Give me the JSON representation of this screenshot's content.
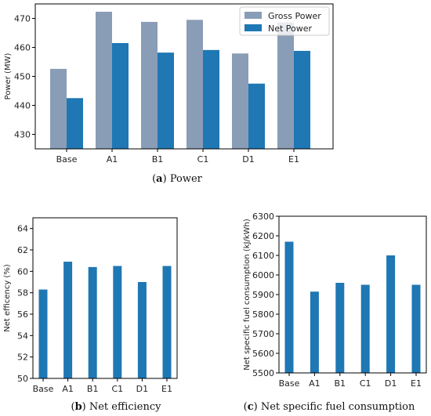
{
  "colors": {
    "gross": "#8a9db7",
    "net": "#1f77b4",
    "axis": "#000000"
  },
  "chart_data": [
    {
      "type": "bar",
      "caption_tag": "a",
      "caption_text": "Power",
      "categories": [
        "Base",
        "A1",
        "B1",
        "C1",
        "D1",
        "E1"
      ],
      "ylabel": "Power (MW)",
      "xlabel": "",
      "ylim": [
        425,
        475
      ],
      "yticks": [
        430,
        440,
        450,
        460,
        470
      ],
      "legend_position": "top-right",
      "series": [
        {
          "name": "Gross Power",
          "color": "#8a9db7",
          "values": [
            452.6,
            472.3,
            468.8,
            469.5,
            457.9,
            468.6
          ]
        },
        {
          "name": "Net Power",
          "color": "#1f77b4",
          "values": [
            442.5,
            461.5,
            458.2,
            459.1,
            447.5,
            458.8
          ]
        }
      ]
    },
    {
      "type": "bar",
      "caption_tag": "b",
      "caption_text": "Net efficiency",
      "categories": [
        "Base",
        "A1",
        "B1",
        "C1",
        "D1",
        "E1"
      ],
      "ylabel": "Net efficency (%)",
      "xlabel": "",
      "ylim": [
        50,
        65
      ],
      "yticks": [
        50,
        52,
        54,
        56,
        58,
        60,
        62,
        64
      ],
      "series": [
        {
          "color": "#1f77b4",
          "values": [
            58.3,
            60.9,
            60.4,
            60.5,
            59.0,
            60.5
          ]
        }
      ]
    },
    {
      "type": "bar",
      "caption_tag": "c",
      "caption_text": "Net specific fuel consumption",
      "categories": [
        "Base",
        "A1",
        "B1",
        "C1",
        "D1",
        "E1"
      ],
      "ylabel": "Net specific fuel consumption (kJ/kWh)",
      "xlabel": "",
      "ylim": [
        5500,
        6300
      ],
      "yticks": [
        5500,
        5600,
        5700,
        5800,
        5900,
        6000,
        6100,
        6200,
        6300
      ],
      "series": [
        {
          "color": "#1f77b4",
          "values": [
            6170,
            5915,
            5960,
            5950,
            6100,
            5950
          ]
        }
      ]
    }
  ]
}
